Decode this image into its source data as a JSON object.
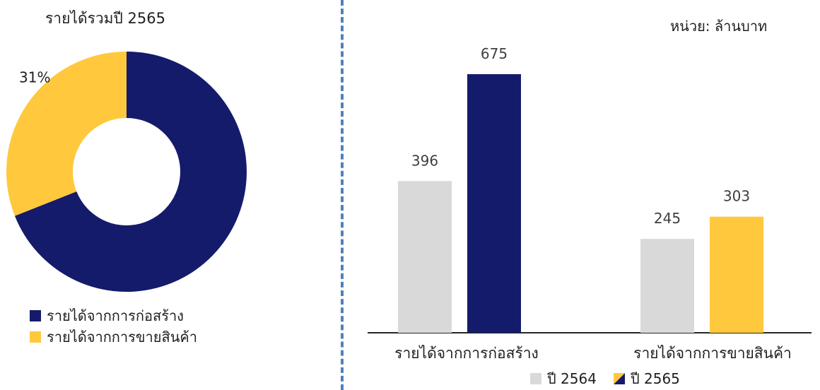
{
  "chart_data": [
    {
      "type": "pie",
      "title": "รายได้รวมปี 2565",
      "categories": [
        "รายได้จากการก่อสร้าง",
        "รายได้จากการขายสินค้า"
      ],
      "values": [
        69,
        31
      ],
      "labels": [
        "69%",
        "31%"
      ],
      "colors": [
        "#141b6b",
        "#ffc83d"
      ],
      "legend": "bottom-left"
    },
    {
      "type": "bar",
      "title": "",
      "unit_label": "หน่วย: ล้านบาท",
      "categories": [
        "รายได้จากการก่อสร้าง",
        "รายได้จากการขายสินค้า"
      ],
      "series": [
        {
          "name": "ปี 2564",
          "values": [
            396,
            245
          ],
          "colors": [
            "#d9d9d9",
            "#d9d9d9"
          ]
        },
        {
          "name": "ปี 2565",
          "values": [
            675,
            303
          ],
          "colors": [
            "#141b6b",
            "#ffc83d"
          ]
        }
      ],
      "ylim": [
        0,
        700
      ],
      "grid": false,
      "legend": "bottom"
    }
  ]
}
